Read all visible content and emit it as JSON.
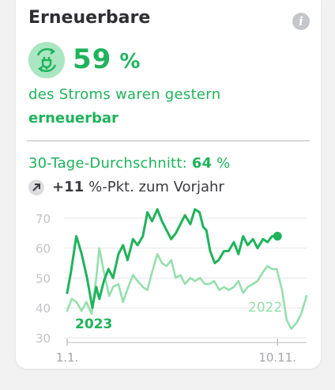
{
  "widget": {
    "title": "Erneuerbare",
    "info_icon": "info-icon",
    "kpi_icon": "renewable-plug-icon",
    "kpi_value": "59",
    "kpi_unit": "%",
    "subtitle_line1": "des Stroms waren gestern",
    "subtitle_line2": "erneuerbar",
    "avg_label": "30-Tage-Durchschnitt:",
    "avg_value": "64",
    "avg_unit": "%",
    "yoy_icon": "trend-up-arrow-icon",
    "yoy_value": "+11",
    "yoy_text": "%-Pkt. zum Vorjahr"
  },
  "colors": {
    "accent": "#1fb35b",
    "accent_light": "#95dfad",
    "icon_bg": "#a9e6c1",
    "title": "#2e2e34"
  },
  "chart_data": {
    "type": "line",
    "ylim": [
      30,
      75
    ],
    "yticks": [
      "70",
      "60",
      "50",
      "40",
      "30"
    ],
    "xticks": [
      "1.1.",
      "10.11."
    ],
    "x_range": [
      0,
      313
    ],
    "series": [
      {
        "name": "2023",
        "color": "#1fb35b",
        "x": [
          0,
          5,
          12,
          19,
          26,
          33,
          38,
          42,
          48,
          54,
          60,
          67,
          73,
          79,
          86,
          92,
          99,
          105,
          111,
          118,
          124,
          130,
          136,
          142,
          148,
          154,
          161,
          167,
          173,
          178,
          182,
          187,
          193,
          198,
          205,
          211,
          218,
          224,
          230,
          236,
          243,
          249,
          256,
          262,
          268,
          275
        ],
        "values": [
          45,
          52,
          64,
          58,
          50,
          40,
          47,
          43,
          49,
          53,
          50,
          58,
          61,
          56,
          63,
          61,
          64,
          72,
          69,
          73,
          69,
          66,
          63,
          65,
          68,
          71,
          68,
          73,
          72,
          67,
          66,
          59,
          55,
          56,
          59,
          59,
          62,
          58,
          64,
          61,
          63,
          60,
          63,
          62,
          64,
          64
        ]
      },
      {
        "name": "2022",
        "color": "#95dfad",
        "x": [
          0,
          6,
          12,
          19,
          25,
          32,
          38,
          42,
          48,
          55,
          60,
          67,
          73,
          80,
          86,
          92,
          99,
          105,
          111,
          118,
          124,
          130,
          136,
          142,
          148,
          154,
          161,
          167,
          174,
          180,
          186,
          192,
          199,
          205,
          211,
          218,
          224,
          230,
          236,
          243,
          249,
          256,
          262,
          268,
          274,
          281,
          287,
          293,
          300,
          306,
          313
        ],
        "values": [
          39,
          43,
          42,
          39,
          42,
          38,
          50,
          60,
          52,
          44,
          47,
          48,
          42,
          47,
          51,
          49,
          47,
          46,
          52,
          58,
          55,
          54,
          56,
          50,
          51,
          48,
          50,
          49,
          50,
          48,
          48,
          49,
          46,
          47,
          46,
          47,
          49,
          45,
          47,
          48,
          49,
          52,
          54,
          53,
          53,
          46,
          36,
          33,
          35,
          38,
          44
        ]
      }
    ],
    "annotations": [
      {
        "text": "2023",
        "series": "2023"
      },
      {
        "text": "2022",
        "series": "2022"
      }
    ]
  }
}
